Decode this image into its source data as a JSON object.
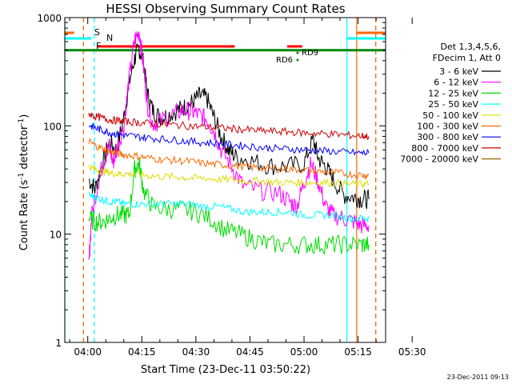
{
  "chart_data": {
    "type": "line",
    "title": "HESSI Observing Summary Count Rates",
    "xlabel": "Start Time (23-Dec-11 03:50:22)",
    "ylabel_main": "Count Rate (s",
    "ylabel_sup": "-1",
    "ylabel_mid": " detector",
    "ylabel_sup2": "-1",
    "ylabel_end": ")",
    "y_scale": "log",
    "ylim": [
      1,
      1000
    ],
    "xlim_minutes": [
      -6.37,
      82.63
    ],
    "x_tick_labels": [
      "04:00",
      "04:15",
      "04:30",
      "04:45",
      "05:00",
      "05:15",
      "05:30"
    ],
    "x_tick_minutes": [
      0,
      15,
      30,
      45,
      60,
      75,
      90
    ],
    "y_tick_labels": [
      "1",
      "10",
      "100",
      "1000"
    ],
    "y_tick_values": [
      1,
      10,
      100,
      1000
    ],
    "legend_header": [
      "Det 1,3,4,5,6,",
      "FDecim 1, Att 0"
    ],
    "series": [
      {
        "name": "3 - 6 keV",
        "color": "#000000",
        "x": [
          0.3,
          2,
          4,
          6,
          8,
          10,
          11.5,
          13,
          14.2,
          15.5,
          16.5,
          18,
          20,
          22,
          25,
          27,
          29,
          31,
          33,
          35,
          37,
          39,
          41,
          45,
          50,
          55,
          60,
          62.5,
          64,
          66,
          68,
          71,
          74,
          76,
          78
        ],
        "y": [
          32,
          26,
          45,
          70,
          60,
          120,
          250,
          420,
          520,
          380,
          200,
          140,
          120,
          125,
          140,
          150,
          165,
          190,
          180,
          120,
          80,
          60,
          52,
          48,
          43,
          42,
          45,
          75,
          50,
          42,
          32,
          23,
          22,
          21,
          21
        ]
      },
      {
        "name": "6 - 12 keV",
        "color": "#ff00ff",
        "x": [
          0.3,
          1,
          3,
          4.5,
          6,
          7,
          8,
          10,
          11.5,
          13,
          14.3,
          15.5,
          16.5,
          18,
          20,
          24,
          27,
          29,
          31,
          33,
          35,
          37,
          40,
          43,
          48,
          53,
          56,
          58,
          60,
          62,
          64,
          66,
          68,
          71,
          74,
          76,
          78
        ],
        "y": [
          5,
          14,
          32,
          48,
          65,
          45,
          60,
          100,
          280,
          620,
          750,
          350,
          160,
          105,
          110,
          130,
          140,
          135,
          125,
          115,
          90,
          60,
          42,
          28,
          25,
          24,
          20,
          18,
          30,
          45,
          30,
          18,
          15,
          14,
          13,
          12,
          12
        ]
      },
      {
        "name": "12 - 25 keV",
        "color": "#00dd00",
        "x": [
          0.3,
          2,
          4,
          6,
          8,
          10,
          11.5,
          13,
          14.3,
          15.5,
          18,
          22,
          26,
          30,
          34,
          38,
          42,
          46,
          50,
          55,
          60,
          64,
          68,
          72,
          76,
          78
        ],
        "y": [
          14,
          13,
          13,
          14,
          15,
          15,
          15,
          40,
          45,
          25,
          18,
          17,
          17,
          16,
          14,
          11,
          10,
          9,
          8,
          8,
          8,
          8,
          8,
          8,
          8,
          8
        ]
      },
      {
        "name": "25 - 50 keV",
        "color": "#00ffff",
        "x": [
          0.3,
          2,
          4,
          6,
          8,
          10,
          13,
          16,
          20,
          24,
          28,
          32,
          36,
          40,
          44,
          48,
          52,
          56,
          60,
          64,
          68,
          72,
          76,
          78
        ],
        "y": [
          23,
          22,
          21,
          20,
          20,
          19,
          19,
          19,
          19,
          19,
          19,
          18,
          18,
          17,
          16,
          16,
          16,
          16,
          15,
          15,
          15,
          14,
          14,
          14
        ]
      },
      {
        "name": "50 - 100 keV",
        "color": "#dddd00",
        "x": [
          0.3,
          2,
          4,
          6,
          8,
          10,
          13,
          16,
          20,
          24,
          28,
          32,
          36,
          40,
          44,
          48,
          52,
          56,
          60,
          64,
          68,
          72,
          76,
          78
        ],
        "y": [
          42,
          40,
          38,
          37,
          36,
          36,
          36,
          35,
          34,
          34,
          33,
          33,
          32,
          32,
          31,
          31,
          30,
          30,
          30,
          30,
          30,
          29,
          29,
          29
        ]
      },
      {
        "name": "100 - 300 keV",
        "color": "#ff6600",
        "x": [
          0.3,
          2,
          4,
          6,
          8,
          10,
          13,
          16,
          20,
          24,
          28,
          32,
          36,
          40,
          44,
          48,
          52,
          56,
          60,
          64,
          68,
          72,
          76,
          78
        ],
        "y": [
          72,
          66,
          62,
          58,
          56,
          54,
          53,
          51,
          49,
          48,
          47,
          45,
          44,
          43,
          42,
          41,
          40,
          40,
          39,
          38,
          37,
          36,
          35,
          35
        ]
      },
      {
        "name": "300 - 800 keV",
        "color": "#0000ff",
        "x": [
          0.3,
          2,
          4,
          6,
          8,
          10,
          13,
          16,
          20,
          24,
          28,
          32,
          36,
          40,
          44,
          48,
          52,
          56,
          60,
          64,
          68,
          72,
          76,
          78
        ],
        "y": [
          102,
          96,
          91,
          87,
          84,
          82,
          80,
          78,
          76,
          74,
          72,
          70,
          69,
          67,
          65,
          63,
          62,
          61,
          60,
          59,
          58,
          57,
          56,
          56
        ]
      },
      {
        "name": "800 - 7000 keV",
        "color": "#cc0000",
        "x": [
          0.3,
          2,
          4,
          6,
          8,
          10,
          13,
          16,
          20,
          24,
          28,
          32,
          36,
          40,
          44,
          48,
          52,
          56,
          60,
          64,
          68,
          72,
          76,
          78
        ],
        "y": [
          130,
          122,
          118,
          114,
          112,
          110,
          108,
          106,
          104,
          102,
          100,
          98,
          96,
          94,
          92,
          90,
          89,
          88,
          86,
          85,
          84,
          82,
          81,
          80
        ]
      },
      {
        "name": "7000 - 20000 keV",
        "color": "#996600",
        "x": [],
        "y": []
      }
    ],
    "flags": {
      "S": {
        "label": "S",
        "color": "#ff6600",
        "segments": [
          [
            -6.37,
            -3.8
          ],
          [
            74.6,
            82.63
          ]
        ]
      },
      "N": {
        "label": "N",
        "color": "#00ffff",
        "segments": [
          [
            -6.37,
            1.0
          ],
          [
            71.9,
            82.63
          ]
        ]
      },
      "F": {
        "label": "F",
        "color": "#ff0000",
        "segments": [
          [
            2.5,
            40.8
          ],
          [
            55.3,
            59.5
          ]
        ]
      },
      "RD9": {
        "label": "RD9",
        "color": "#008800",
        "segments": []
      },
      "RD6": {
        "label": "RD6",
        "color": "#008800",
        "segments": []
      }
    },
    "green_level": 500,
    "vlines": [
      {
        "t": -6.37,
        "color": "#00ffff",
        "dash": false
      },
      {
        "t": -1.2,
        "color": "#ff6600",
        "dash": true
      },
      {
        "t": 1.8,
        "color": "#00ffff",
        "dash": true
      },
      {
        "t": 71.9,
        "color": "#00ffff",
        "dash": false
      },
      {
        "t": 74.6,
        "color": "#ff6600",
        "dash": false
      },
      {
        "t": 79.9,
        "color": "#00ffff",
        "dash": true
      },
      {
        "t": 79.9,
        "color": "#ff6600",
        "dash": true
      }
    ],
    "grid": false,
    "legend_position": "right"
  },
  "footer_timestamp": "23-Dec-2011 09:13"
}
